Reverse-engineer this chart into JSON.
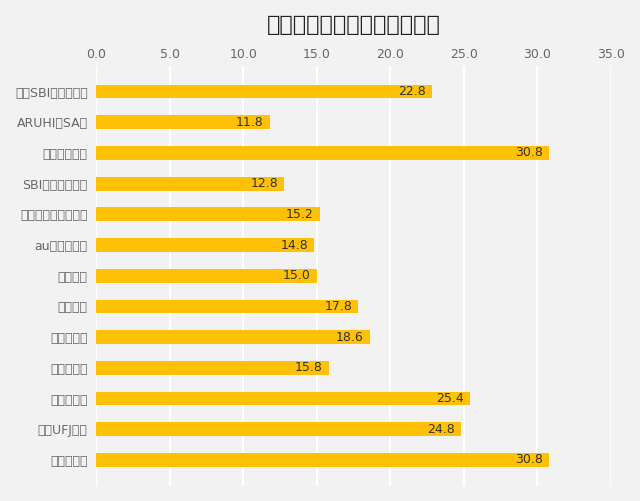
{
  "title": "信頼できる住宅ローンである",
  "categories": [
    "住信SBIネット銀行",
    "ARUHI（SA）",
    "三井住友銀行",
    "SBIマネープラザ",
    "ジャパンネット銀行",
    "auじぶん銀行",
    "楽天銀行",
    "新生銀行",
    "ソニー銀行",
    "イオン銀行",
    "みずほ銀行",
    "三菱UFJ銀行",
    "りそな銀行"
  ],
  "values": [
    22.8,
    11.8,
    30.8,
    12.8,
    15.2,
    14.8,
    15.0,
    17.8,
    18.6,
    15.8,
    25.4,
    24.8,
    30.8
  ],
  "bar_color": "#FFC107",
  "label_color": "#666666",
  "value_color": "#333333",
  "background_color": "#F2F2F2",
  "grid_color": "#FFFFFF",
  "xlim": [
    0,
    35.0
  ],
  "xticks": [
    0.0,
    5.0,
    10.0,
    15.0,
    20.0,
    25.0,
    30.0,
    35.0
  ],
  "title_fontsize": 16,
  "label_fontsize": 9,
  "value_fontsize": 9
}
